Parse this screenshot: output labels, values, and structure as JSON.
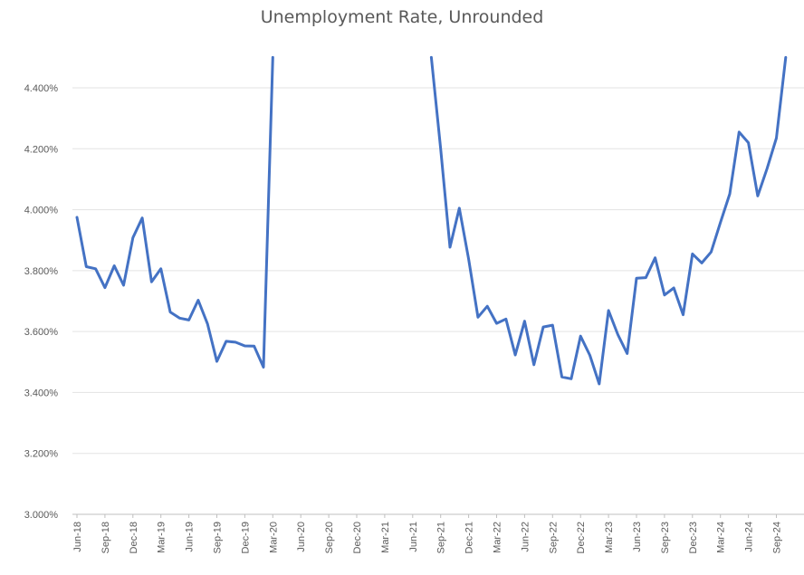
{
  "chart_data": {
    "type": "line",
    "title": "Unemployment Rate, Unrounded",
    "xlabel": "",
    "ylabel": "",
    "ylim": [
      3.0,
      4.5
    ],
    "y_ticks": [
      "3.000%",
      "3.200%",
      "3.400%",
      "3.600%",
      "3.800%",
      "4.000%",
      "4.200%",
      "4.400%"
    ],
    "y_tick_values": [
      3.0,
      3.2,
      3.4,
      3.6,
      3.8,
      4.0,
      4.2,
      4.4
    ],
    "x_tick_labels": [
      "Jun-18",
      "Sep-18",
      "Dec-18",
      "Mar-19",
      "Jun-19",
      "Sep-19",
      "Dec-19",
      "Mar-20",
      "Jun-20",
      "Sep-20",
      "Dec-20",
      "Mar-21",
      "Jun-21",
      "Sep-21",
      "Dec-21",
      "Mar-22",
      "Jun-22",
      "Sep-22",
      "Dec-22",
      "Mar-23",
      "Jun-23",
      "Sep-23",
      "Dec-23",
      "Mar-24",
      "Jun-24",
      "Sep-24"
    ],
    "months": [
      "Jun-18",
      "Jul-18",
      "Aug-18",
      "Sep-18",
      "Oct-18",
      "Nov-18",
      "Dec-18",
      "Jan-19",
      "Feb-19",
      "Mar-19",
      "Apr-19",
      "May-19",
      "Jun-19",
      "Jul-19",
      "Aug-19",
      "Sep-19",
      "Oct-19",
      "Nov-19",
      "Dec-19",
      "Jan-20",
      "Feb-20",
      "Mar-20",
      "Apr-20",
      "May-20",
      "Jun-20",
      "Jul-20",
      "Aug-20",
      "Sep-20",
      "Oct-20",
      "Nov-20",
      "Dec-20",
      "Jan-21",
      "Feb-21",
      "Mar-21",
      "Apr-21",
      "May-21",
      "Jun-21",
      "Jul-21",
      "Aug-21",
      "Sep-21",
      "Oct-21",
      "Nov-21",
      "Dec-21",
      "Jan-22",
      "Feb-22",
      "Mar-22",
      "Apr-22",
      "May-22",
      "Jun-22",
      "Jul-22",
      "Aug-22",
      "Sep-22",
      "Oct-22",
      "Nov-22",
      "Dec-22",
      "Jan-23",
      "Feb-23",
      "Mar-23",
      "Apr-23",
      "May-23",
      "Jun-23",
      "Jul-23",
      "Aug-23",
      "Sep-23",
      "Oct-23",
      "Nov-23",
      "Dec-23",
      "Jan-24",
      "Feb-24",
      "Mar-24",
      "Apr-24",
      "May-24",
      "Jun-24",
      "Jul-24",
      "Aug-24",
      "Sep-24",
      "Oct-24"
    ],
    "series": [
      {
        "values": [
          3.975,
          3.813,
          3.806,
          3.744,
          3.816,
          3.752,
          3.908,
          3.973,
          3.763,
          3.806,
          3.664,
          3.644,
          3.638,
          3.703,
          3.625,
          3.502,
          3.568,
          3.565,
          3.553,
          3.552,
          3.483,
          4.5,
          null,
          null,
          null,
          null,
          null,
          null,
          null,
          null,
          null,
          null,
          null,
          null,
          null,
          null,
          null,
          null,
          4.5,
          4.2,
          3.877,
          4.005,
          3.838,
          3.647,
          3.683,
          3.627,
          3.641,
          3.523,
          3.634,
          3.491,
          3.615,
          3.621,
          3.451,
          3.445,
          3.585,
          3.522,
          3.428,
          3.669,
          3.59,
          3.528,
          3.775,
          3.777,
          3.842,
          3.72,
          3.743,
          3.655,
          3.855,
          3.825,
          3.861,
          3.958,
          4.052,
          4.255,
          4.22,
          4.045,
          4.135,
          4.235,
          4.5
        ],
        "color": "#4472c4"
      }
    ],
    "grid": true,
    "legend": "none"
  }
}
